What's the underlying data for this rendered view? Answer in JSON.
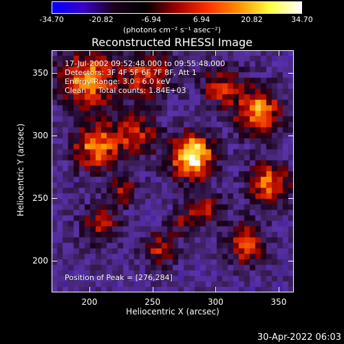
{
  "colorbar": {
    "ticks": [
      "-34.70",
      "-20.82",
      "-6.94",
      "6.94",
      "20.82",
      "34.70"
    ],
    "units": "(photons cm⁻² s⁻¹ asec⁻²)",
    "colors": [
      "#0000ff",
      "#3a00c8",
      "#180018",
      "#000000",
      "#a00000",
      "#ff3000",
      "#ff9000",
      "#ffff40",
      "#ffffff"
    ]
  },
  "title": "Reconstructed RHESSI Image",
  "info": {
    "time": "17-Jul-2002 09:52:48.000 to 09:55:48.000",
    "detectors": "Detectors: 3F 4F 5F 6F 7F 8F, Att 1",
    "energy": "Energy Range: 3.0 - 6.0 keV",
    "clean": "Clean     Total counts: 1.84E+03",
    "peak": "Position of Peak = [276,284]"
  },
  "axes": {
    "xlabel": "Heliocentric X (arcsec)",
    "ylabel": "Heliocentric Y (arcsec)",
    "xticks": [
      "200",
      "250",
      "300",
      "350"
    ],
    "yticks": [
      "200",
      "250",
      "300",
      "350"
    ],
    "xrange": [
      170,
      362
    ],
    "yrange": [
      175,
      368
    ]
  },
  "timestamp": "30-Apr-2022 06:03"
}
